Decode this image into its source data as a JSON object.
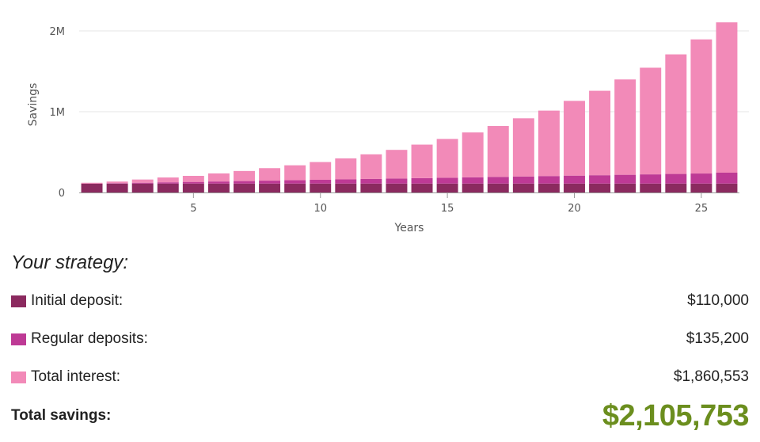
{
  "chart_data": {
    "type": "bar",
    "stacked": true,
    "xlabel": "Years",
    "ylabel": "Savings",
    "x": [
      1,
      2,
      3,
      4,
      5,
      6,
      7,
      8,
      9,
      10,
      11,
      12,
      13,
      14,
      15,
      16,
      17,
      18,
      19,
      20,
      21,
      22,
      23,
      24,
      25,
      26
    ],
    "x_ticks": [
      "5",
      "10",
      "15",
      "20",
      "25"
    ],
    "x_tick_values": [
      5,
      10,
      15,
      20,
      25
    ],
    "y_ticks": [
      "0",
      "1M",
      "2M"
    ],
    "y_tick_values": [
      0,
      1000000,
      2000000
    ],
    "ylim": [
      0,
      2000000
    ],
    "grid": true,
    "series": [
      {
        "name": "Initial deposit",
        "color": "#8b2a5f",
        "values": [
          110000,
          110000,
          110000,
          110000,
          110000,
          110000,
          110000,
          110000,
          110000,
          110000,
          110000,
          110000,
          110000,
          110000,
          110000,
          110000,
          110000,
          110000,
          110000,
          110000,
          110000,
          110000,
          110000,
          110000,
          110000,
          110000
        ]
      },
      {
        "name": "Regular deposits",
        "color": "#be3a95",
        "values": [
          0,
          5200,
          10400,
          15600,
          20800,
          26000,
          31200,
          36400,
          41600,
          46800,
          52000,
          57200,
          62400,
          67600,
          72800,
          78000,
          83200,
          88400,
          93600,
          98800,
          104000,
          109200,
          114400,
          119600,
          124800,
          135200
        ]
      },
      {
        "name": "Total interest",
        "color": "#f28ab8",
        "values": [
          10000,
          20000,
          40000,
          60000,
          75000,
          100000,
          125000,
          155000,
          185000,
          220000,
          260000,
          305000,
          355000,
          415000,
          480000,
          555000,
          630000,
          720000,
          810000,
          925000,
          1045000,
          1180000,
          1320000,
          1480000,
          1660000,
          1860553
        ]
      }
    ]
  },
  "summary": {
    "title": "Your strategy:",
    "items": [
      {
        "label": "Initial deposit:",
        "value": "$110,000",
        "color": "#8b2a5f"
      },
      {
        "label": "Regular deposits:",
        "value": "$135,200",
        "color": "#be3a95"
      },
      {
        "label": "Total interest:",
        "value": "$1,860,553",
        "color": "#f28ab8"
      }
    ],
    "total_label": "Total savings:",
    "total_value": "$2,105,753"
  }
}
